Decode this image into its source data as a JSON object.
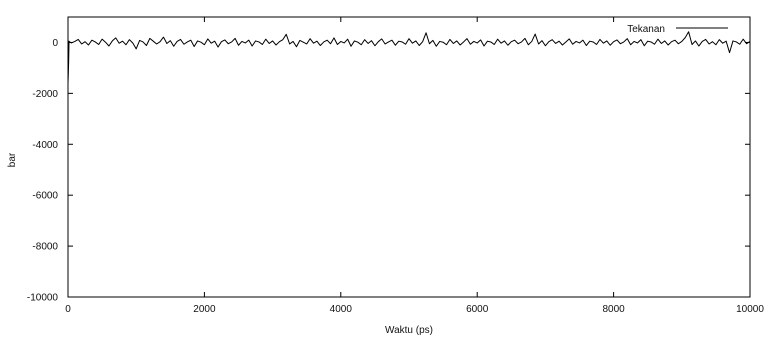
{
  "chart_data": {
    "type": "line",
    "title": "",
    "xlabel": "Waktu (ps)",
    "ylabel": "bar",
    "xlim": [
      0,
      10000
    ],
    "ylim": [
      -10000,
      1000
    ],
    "x_ticks": [
      0,
      2000,
      4000,
      6000,
      8000,
      10000
    ],
    "y_ticks": [
      -10000,
      -8000,
      -6000,
      -4000,
      -2000,
      0
    ],
    "grid": false,
    "legend_position": "top-right",
    "series": [
      {
        "name": "Tekanan",
        "color": "#000000",
        "points": [
          [
            0,
            -1600
          ],
          [
            5,
            -1200
          ],
          [
            10,
            -700
          ],
          [
            15,
            50
          ],
          [
            25,
            20
          ],
          [
            50,
            -20
          ],
          [
            100,
            40
          ],
          [
            150,
            120
          ],
          [
            200,
            -60
          ],
          [
            250,
            30
          ],
          [
            300,
            -100
          ],
          [
            350,
            90
          ],
          [
            400,
            20
          ],
          [
            450,
            -80
          ],
          [
            500,
            130
          ],
          [
            550,
            10
          ],
          [
            600,
            -140
          ],
          [
            650,
            60
          ],
          [
            700,
            180
          ],
          [
            750,
            -30
          ],
          [
            800,
            50
          ],
          [
            850,
            -90
          ],
          [
            900,
            110
          ],
          [
            950,
            -20
          ],
          [
            1000,
            -250
          ],
          [
            1050,
            80
          ],
          [
            1100,
            20
          ],
          [
            1150,
            -120
          ],
          [
            1200,
            160
          ],
          [
            1250,
            50
          ],
          [
            1300,
            -60
          ],
          [
            1350,
            30
          ],
          [
            1400,
            210
          ],
          [
            1450,
            -40
          ],
          [
            1500,
            70
          ],
          [
            1550,
            -150
          ],
          [
            1600,
            40
          ],
          [
            1650,
            120
          ],
          [
            1700,
            -70
          ],
          [
            1750,
            20
          ],
          [
            1800,
            90
          ],
          [
            1850,
            -160
          ],
          [
            1900,
            60
          ],
          [
            1950,
            10
          ],
          [
            2000,
            -90
          ],
          [
            2050,
            140
          ],
          [
            2100,
            -30
          ],
          [
            2150,
            50
          ],
          [
            2200,
            -180
          ],
          [
            2250,
            30
          ],
          [
            2300,
            100
          ],
          [
            2350,
            -50
          ],
          [
            2400,
            20
          ],
          [
            2450,
            160
          ],
          [
            2500,
            -110
          ],
          [
            2550,
            40
          ],
          [
            2600,
            -20
          ],
          [
            2650,
            90
          ],
          [
            2700,
            -140
          ],
          [
            2750,
            60
          ],
          [
            2800,
            20
          ],
          [
            2850,
            -80
          ],
          [
            2900,
            130
          ],
          [
            2950,
            -40
          ],
          [
            3000,
            60
          ],
          [
            3050,
            -100
          ],
          [
            3100,
            30
          ],
          [
            3150,
            110
          ],
          [
            3200,
            320
          ],
          [
            3250,
            -60
          ],
          [
            3300,
            40
          ],
          [
            3350,
            -170
          ],
          [
            3400,
            80
          ],
          [
            3450,
            10
          ],
          [
            3500,
            -60
          ],
          [
            3550,
            150
          ],
          [
            3600,
            -30
          ],
          [
            3650,
            50
          ],
          [
            3700,
            -120
          ],
          [
            3750,
            20
          ],
          [
            3800,
            90
          ],
          [
            3850,
            -50
          ],
          [
            3900,
            180
          ],
          [
            3950,
            -80
          ],
          [
            4000,
            40
          ],
          [
            4050,
            -20
          ],
          [
            4100,
            130
          ],
          [
            4150,
            -150
          ],
          [
            4200,
            60
          ],
          [
            4250,
            10
          ],
          [
            4300,
            -90
          ],
          [
            4350,
            110
          ],
          [
            4400,
            -40
          ],
          [
            4450,
            70
          ],
          [
            4500,
            -130
          ],
          [
            4550,
            30
          ],
          [
            4600,
            140
          ],
          [
            4650,
            -60
          ],
          [
            4700,
            20
          ],
          [
            4750,
            90
          ],
          [
            4800,
            -110
          ],
          [
            4850,
            50
          ],
          [
            4900,
            20
          ],
          [
            4950,
            -70
          ],
          [
            5000,
            150
          ],
          [
            5050,
            -30
          ],
          [
            5100,
            60
          ],
          [
            5150,
            -120
          ],
          [
            5200,
            30
          ],
          [
            5250,
            380
          ],
          [
            5300,
            -50
          ],
          [
            5350,
            80
          ],
          [
            5400,
            -150
          ],
          [
            5450,
            40
          ],
          [
            5500,
            10
          ],
          [
            5550,
            -90
          ],
          [
            5600,
            120
          ],
          [
            5650,
            -40
          ],
          [
            5700,
            60
          ],
          [
            5750,
            -100
          ],
          [
            5800,
            20
          ],
          [
            5850,
            150
          ],
          [
            5900,
            -70
          ],
          [
            5950,
            40
          ],
          [
            6000,
            -20
          ],
          [
            6050,
            100
          ],
          [
            6100,
            -140
          ],
          [
            6150,
            50
          ],
          [
            6200,
            20
          ],
          [
            6250,
            -80
          ],
          [
            6300,
            130
          ],
          [
            6350,
            -30
          ],
          [
            6400,
            60
          ],
          [
            6450,
            -110
          ],
          [
            6500,
            30
          ],
          [
            6550,
            90
          ],
          [
            6600,
            -50
          ],
          [
            6650,
            20
          ],
          [
            6700,
            160
          ],
          [
            6750,
            -90
          ],
          [
            6800,
            40
          ],
          [
            6850,
            330
          ],
          [
            6900,
            -60
          ],
          [
            6950,
            70
          ],
          [
            7000,
            -130
          ],
          [
            7050,
            30
          ],
          [
            7100,
            110
          ],
          [
            7150,
            -40
          ],
          [
            7200,
            50
          ],
          [
            7250,
            -100
          ],
          [
            7300,
            20
          ],
          [
            7350,
            140
          ],
          [
            7400,
            -70
          ],
          [
            7450,
            40
          ],
          [
            7500,
            -20
          ],
          [
            7550,
            90
          ],
          [
            7600,
            -120
          ],
          [
            7650,
            50
          ],
          [
            7700,
            20
          ],
          [
            7750,
            -80
          ],
          [
            7800,
            120
          ],
          [
            7850,
            -30
          ],
          [
            7900,
            60
          ],
          [
            7950,
            -110
          ],
          [
            8000,
            30
          ],
          [
            8050,
            100
          ],
          [
            8100,
            -50
          ],
          [
            8150,
            20
          ],
          [
            8200,
            150
          ],
          [
            8250,
            -90
          ],
          [
            8300,
            40
          ],
          [
            8350,
            -20
          ],
          [
            8400,
            110
          ],
          [
            8450,
            -130
          ],
          [
            8500,
            50
          ],
          [
            8550,
            20
          ],
          [
            8600,
            -70
          ],
          [
            8650,
            130
          ],
          [
            8700,
            -40
          ],
          [
            8750,
            60
          ],
          [
            8800,
            -100
          ],
          [
            8850,
            30
          ],
          [
            8900,
            90
          ],
          [
            8950,
            -50
          ],
          [
            9000,
            40
          ],
          [
            9050,
            190
          ],
          [
            9100,
            420
          ],
          [
            9150,
            -80
          ],
          [
            9200,
            60
          ],
          [
            9250,
            -140
          ],
          [
            9300,
            40
          ],
          [
            9350,
            120
          ],
          [
            9400,
            -60
          ],
          [
            9450,
            30
          ],
          [
            9500,
            -90
          ],
          [
            9550,
            110
          ],
          [
            9600,
            -30
          ],
          [
            9650,
            50
          ],
          [
            9700,
            -400
          ],
          [
            9750,
            60
          ],
          [
            9800,
            20
          ],
          [
            9850,
            -70
          ],
          [
            9900,
            130
          ],
          [
            9950,
            -50
          ],
          [
            10000,
            40
          ]
        ]
      }
    ]
  }
}
